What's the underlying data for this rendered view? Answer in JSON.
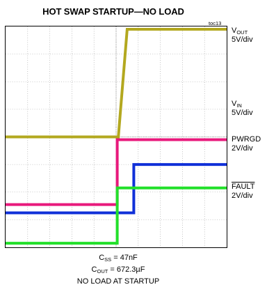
{
  "chart_data": {
    "type": "line",
    "title": "HOT SWAP STARTUP—NO LOAD",
    "figure_id": "toc13",
    "time_divisions": 10,
    "voltage_divisions": 8,
    "series": [
      {
        "name": "VOUT",
        "name_main": "V",
        "name_sub": "OUT",
        "scale": "5V/div",
        "color": "#b3a81f",
        "points": [
          [
            0,
            4.0
          ],
          [
            5.1,
            4.0
          ],
          [
            5.5,
            7.9
          ],
          [
            10,
            7.9
          ]
        ]
      },
      {
        "name": "VIN",
        "name_main": "V",
        "name_sub": "IN",
        "scale": "5V/div",
        "color": "#e8197c",
        "points": [
          [
            0,
            1.55
          ],
          [
            5.05,
            1.55
          ],
          [
            5.05,
            3.9
          ],
          [
            10,
            3.9
          ]
        ]
      },
      {
        "name": "PWRGD",
        "name_main": "PWRGD",
        "name_sub": "",
        "scale": "2V/div",
        "color": "#1030d8",
        "points": [
          [
            0,
            1.25
          ],
          [
            5.8,
            1.25
          ],
          [
            5.8,
            3.0
          ],
          [
            10,
            3.0
          ]
        ]
      },
      {
        "name": "FAULT",
        "name_main": "FAULT",
        "name_sub": "",
        "overline": true,
        "scale": "2V/div",
        "color": "#22e02a",
        "points": [
          [
            0,
            0.15
          ],
          [
            5.05,
            0.15
          ],
          [
            5.05,
            2.15
          ],
          [
            10,
            2.15
          ]
        ]
      }
    ]
  },
  "conditions": {
    "css_main": "C",
    "css_sub": "SS",
    "css_value": " = 47nF",
    "cout_main": "C",
    "cout_sub": "OUT",
    "cout_value": " = 672.3µF",
    "load": "NO LOAD AT STARTUP"
  }
}
